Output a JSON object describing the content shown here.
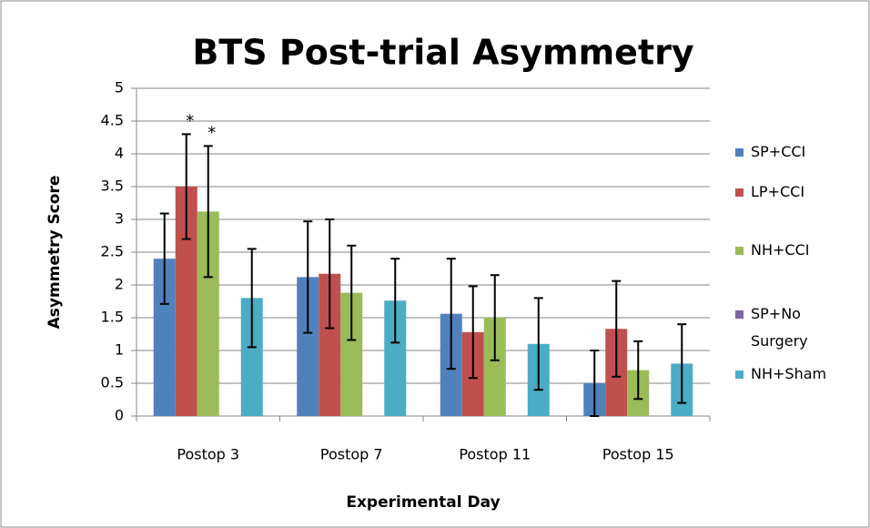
{
  "chart_data": {
    "type": "bar",
    "title": "BTS Post-trial Asymmetry",
    "x_label": "Experimental Day",
    "y_label": "Asymmetry Score",
    "categories": [
      "Postop 3",
      "Postop 7",
      "Postop 11",
      "Postop 15"
    ],
    "series": [
      {
        "name": "SP+CCI",
        "color": "#4f81bd",
        "values": [
          2.4,
          2.12,
          1.56,
          0.5
        ],
        "errors": [
          0.69,
          0.85,
          0.84,
          0.5
        ]
      },
      {
        "name": "LP+CCI",
        "color": "#c0504d",
        "values": [
          3.5,
          2.17,
          1.28,
          1.33
        ],
        "errors": [
          0.8,
          0.83,
          0.7,
          0.73
        ]
      },
      {
        "name": "NH+CCI",
        "color": "#9bbb59",
        "values": [
          3.12,
          1.88,
          1.5,
          0.7
        ],
        "errors": [
          1.0,
          0.72,
          0.65,
          0.44
        ]
      },
      {
        "name": "SP+No Surgery",
        "color": "#8064a2",
        "values": [
          null,
          null,
          null,
          null
        ],
        "errors": [
          null,
          null,
          null,
          null
        ]
      },
      {
        "name": "NH+Sham",
        "color": "#4bacc6",
        "values": [
          1.8,
          1.76,
          1.1,
          0.8
        ],
        "errors": [
          0.75,
          0.64,
          0.7,
          0.6
        ]
      }
    ],
    "annotations": [
      {
        "text": "*",
        "series": 1,
        "category": 0
      },
      {
        "text": "*",
        "series": 2,
        "category": 0
      }
    ],
    "ylim": [
      0,
      5
    ],
    "yticks": [
      0,
      0.5,
      1,
      1.5,
      2,
      2.5,
      3,
      3.5,
      4,
      4.5,
      5
    ],
    "grid": true
  }
}
